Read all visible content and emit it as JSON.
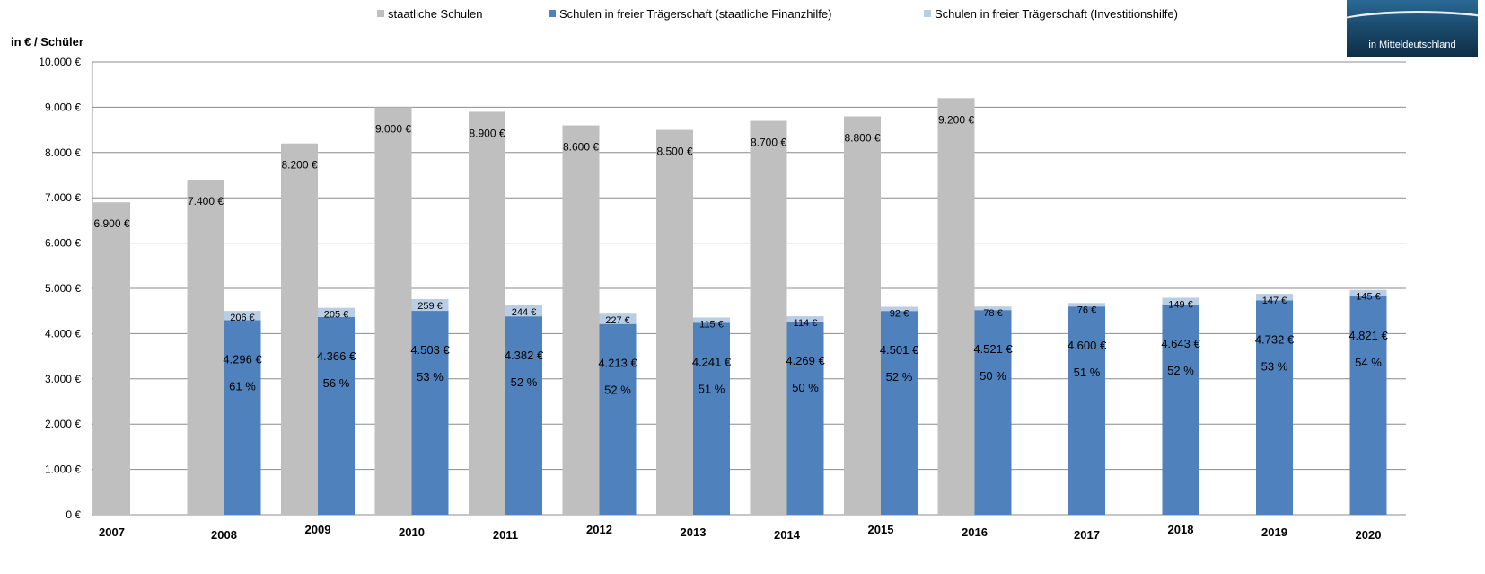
{
  "logo_text": "in Mitteldeutschland",
  "chart_data": {
    "type": "bar",
    "title": "",
    "ylabel": "in € / Schüler",
    "xlabel": "",
    "ylim": [
      0,
      10000
    ],
    "yticks": [
      "0 €",
      "1.000 €",
      "2.000 €",
      "3.000 €",
      "4.000 €",
      "5.000 €",
      "6.000 €",
      "7.000 €",
      "8.000 €",
      "9.000 €",
      "10.000 €"
    ],
    "grid": true,
    "legend_position": "top",
    "categories": [
      "2007",
      "2008",
      "2009",
      "2010",
      "2011",
      "2012",
      "2013",
      "2014",
      "2015",
      "2016",
      "2017",
      "2018",
      "2019",
      "2020"
    ],
    "series": [
      {
        "name": "staatliche Schulen",
        "color": "#bfbfbf",
        "values": [
          6900,
          7400,
          8200,
          9000,
          8900,
          8600,
          8500,
          8700,
          8800,
          9200,
          null,
          null,
          null,
          null
        ],
        "labels": [
          "6.900 €",
          "7.400 €",
          "8.200 €",
          "9.000 €",
          "8.900 €",
          "8.600 €",
          "8.500 €",
          "8.700 €",
          "8.800 €",
          "9.200 €",
          "",
          "",
          "",
          ""
        ]
      },
      {
        "name": "Schulen in freier Trägerschaft (staatliche Finanzhilfe)",
        "color": "#4f81bd",
        "values": [
          null,
          4296,
          4366,
          4503,
          4382,
          4213,
          4241,
          4269,
          4501,
          4521,
          4600,
          4643,
          4732,
          4821
        ],
        "labels": [
          "",
          "4.296 €",
          "4.366 €",
          "4.503 €",
          "4.382 €",
          "4.213 €",
          "4.241 €",
          "4.269 €",
          "4.501 €",
          "4.521 €",
          "4.600 €",
          "4.643 €",
          "4.732 €",
          "4.821 €"
        ],
        "percent_labels": [
          "",
          "61 %",
          "56 %",
          "53 %",
          "52 %",
          "52 %",
          "51 %",
          "50 %",
          "52 %",
          "50 %",
          "51 %",
          "52 %",
          "53 %",
          "54 %"
        ]
      },
      {
        "name": "Schulen in freier Trägerschaft (Investitionshilfe)",
        "color": "#b9cde5",
        "stacked_on": "Schulen in freier Trägerschaft (staatliche Finanzhilfe)",
        "values": [
          null,
          206,
          205,
          259,
          244,
          227,
          115,
          114,
          92,
          78,
          76,
          149,
          147,
          145
        ],
        "labels": [
          "",
          "206 €",
          "205 €",
          "259 €",
          "244 €",
          "227 €",
          "115 €",
          "114 €",
          "92 €",
          "78 €",
          "76 €",
          "149 €",
          "147 €",
          "145 €"
        ]
      }
    ]
  }
}
